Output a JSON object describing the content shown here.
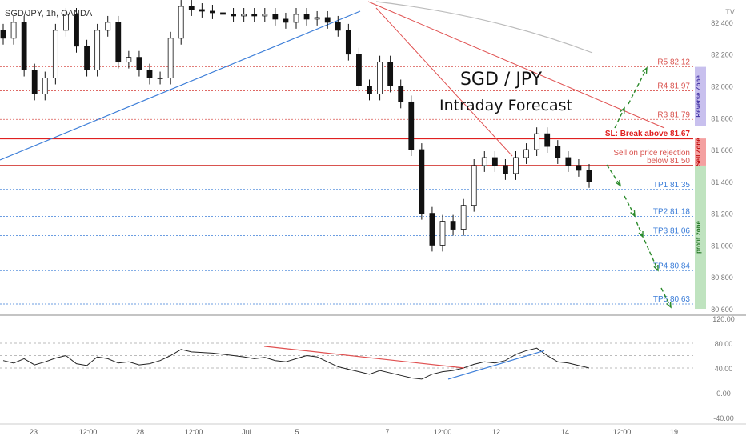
{
  "header": {
    "symbol": "SGD/JPY, 1h, OANDA",
    "logo": "TV"
  },
  "title": {
    "pair": "SGD / JPY",
    "subtitle": "Intraday Forecast"
  },
  "price_axis": {
    "ticks": [
      "82.400",
      "82.200",
      "82.000",
      "81.800",
      "81.600",
      "81.400",
      "81.200",
      "81.000",
      "80.800",
      "80.600"
    ]
  },
  "rsi_axis": {
    "ticks": [
      "120.00",
      "80.00",
      "40.00",
      "0.00",
      "-40.00"
    ]
  },
  "time_axis": {
    "labels": [
      "23",
      "12:00",
      "28",
      "12:00",
      "Jul",
      "5",
      "7",
      "12:00",
      "12",
      "14",
      "12:00",
      "19"
    ]
  },
  "levels": [
    {
      "label": "R5 82.12",
      "price": 82.12,
      "color": "#d9534f"
    },
    {
      "label": "R4 81.97",
      "price": 81.97,
      "color": "#d9534f"
    },
    {
      "label": "R3 81.79",
      "price": 81.79,
      "color": "#d9534f"
    },
    {
      "label": "SL: Break above 81.67",
      "price": 81.67,
      "color": "#e02020"
    },
    {
      "label": "Sell on price rejection",
      "price": 81.55,
      "color": "#d9534f"
    },
    {
      "label": "below 81.50",
      "price": 81.5,
      "color": "#d9534f"
    },
    {
      "label": "TP1 81.35",
      "price": 81.35,
      "color": "#3b7dd8"
    },
    {
      "label": "TP2 81.18",
      "price": 81.18,
      "color": "#3b7dd8"
    },
    {
      "label": "TP3 81.06",
      "price": 81.06,
      "color": "#3b7dd8"
    },
    {
      "label": "TP4 80.84",
      "price": 80.84,
      "color": "#3b7dd8"
    },
    {
      "label": "TP5 80.63",
      "price": 80.63,
      "color": "#3b7dd8"
    }
  ],
  "zones": [
    {
      "label": "Reverse Zone",
      "color": "#c8c0ee",
      "text_color": "#4a3aa8"
    },
    {
      "label": "Sell Zone",
      "color": "#f4a0a0",
      "text_color": "#c01010"
    },
    {
      "label": "profit zone",
      "color": "#bfe3bf",
      "text_color": "#2a7a2a"
    }
  ],
  "chart_data": [
    {
      "type": "candlestick",
      "series": [
        {
          "name": "SGD/JPY",
          "values": [
            82.3,
            82.4,
            82.1,
            81.95,
            82.05,
            82.35,
            82.45,
            82.25,
            82.1,
            82.35,
            82.4,
            82.15,
            82.18,
            82.1,
            82.05,
            82.05,
            82.3,
            82.5,
            82.48,
            82.47,
            82.46,
            82.45,
            82.44,
            82.45,
            82.44,
            82.45,
            82.42,
            82.4,
            82.45,
            82.42,
            82.43,
            82.4,
            82.35,
            82.2,
            82.0,
            81.95,
            82.15,
            82.0,
            81.9,
            81.6,
            81.2,
            81.0,
            81.15,
            81.1,
            81.25,
            81.5,
            81.55,
            81.5,
            81.45,
            81.55,
            81.6,
            81.7,
            81.62,
            81.55,
            81.5,
            81.47,
            81.4
          ]
        }
      ],
      "ylim": [
        80.6,
        82.5
      ],
      "xlabel": "",
      "ylabel": ""
    },
    {
      "type": "line",
      "series": [
        {
          "name": "RSI",
          "values": [
            52,
            48,
            55,
            45,
            50,
            56,
            60,
            47,
            44,
            58,
            55,
            48,
            50,
            45,
            47,
            52,
            60,
            70,
            66,
            65,
            64,
            62,
            60,
            58,
            55,
            57,
            52,
            50,
            55,
            60,
            58,
            50,
            42,
            38,
            34,
            30,
            36,
            32,
            28,
            24,
            22,
            30,
            34,
            36,
            40,
            46,
            50,
            48,
            52,
            62,
            68,
            72,
            60,
            50,
            48,
            44,
            40
          ]
        }
      ],
      "ylim": [
        -40,
        120
      ]
    }
  ]
}
